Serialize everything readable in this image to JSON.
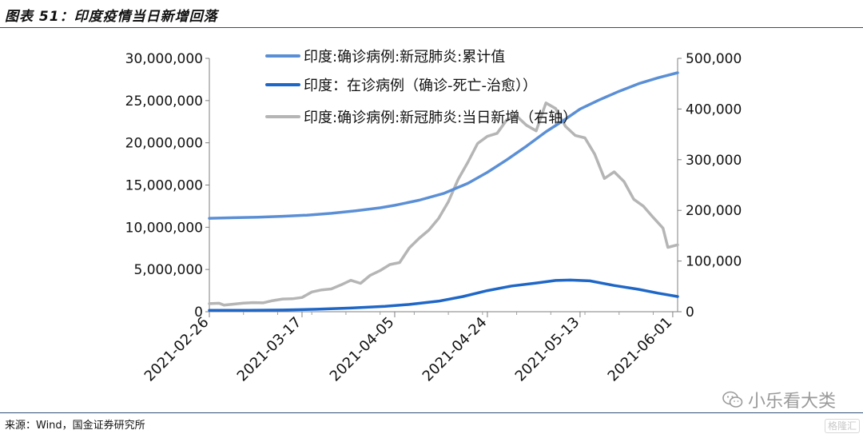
{
  "figure_title": "图表 51：印度疫情当日新增回落",
  "source_note": "来源：Wind，国金证券研究所",
  "watermark": "小乐看大类",
  "corner_badge": "格隆汇",
  "colors": {
    "cumulative": "#5b8fd5",
    "active": "#1f67c7",
    "daily": "#b5b5b5",
    "rule": "#2f4d7a"
  },
  "chart_data": {
    "type": "line",
    "title": "",
    "xlabel": "",
    "ylabel": "",
    "ylim": [
      0,
      30000000
    ],
    "y2lim": [
      0,
      500000
    ],
    "y_ticks": [
      0,
      5000000,
      10000000,
      15000000,
      20000000,
      25000000,
      30000000
    ],
    "y_tick_labels": [
      "0",
      "5,000,000",
      "10,000,000",
      "15,000,000",
      "20,000,000",
      "25,000,000",
      "30,000,000"
    ],
    "y2_ticks": [
      0,
      100000,
      200000,
      300000,
      400000,
      500000
    ],
    "y2_tick_labels": [
      "0",
      "100,000",
      "200,000",
      "300,000",
      "400,000",
      "500,000"
    ],
    "x_tick_labels": [
      "2021-02-26",
      "2021-03-17",
      "2021-04-05",
      "2021-04-24",
      "2021-05-13",
      "2021-06-01"
    ],
    "x_range": [
      "2021-02-26",
      "2021-06-02"
    ],
    "grid": false,
    "legend_position": "top-left",
    "series": [
      {
        "name": "印度:确诊病例:新冠肺炎:累计值",
        "axis": "left",
        "points": [
          [
            "2021-02-26",
            11060000
          ],
          [
            "2021-03-03",
            11130000
          ],
          [
            "2021-03-08",
            11200000
          ],
          [
            "2021-03-13",
            11300000
          ],
          [
            "2021-03-18",
            11430000
          ],
          [
            "2021-03-23",
            11650000
          ],
          [
            "2021-03-28",
            11950000
          ],
          [
            "2021-04-02",
            12300000
          ],
          [
            "2021-04-05",
            12600000
          ],
          [
            "2021-04-10",
            13200000
          ],
          [
            "2021-04-15",
            14000000
          ],
          [
            "2021-04-20",
            15200000
          ],
          [
            "2021-04-24",
            16500000
          ],
          [
            "2021-04-28",
            18000000
          ],
          [
            "2021-05-02",
            19600000
          ],
          [
            "2021-05-06",
            21300000
          ],
          [
            "2021-05-10",
            22800000
          ],
          [
            "2021-05-13",
            24000000
          ],
          [
            "2021-05-17",
            25100000
          ],
          [
            "2021-05-21",
            26100000
          ],
          [
            "2021-05-25",
            27000000
          ],
          [
            "2021-05-29",
            27700000
          ],
          [
            "2021-06-02",
            28300000
          ]
        ]
      },
      {
        "name": "印度：在诊病例（确诊-死亡-治愈））",
        "axis": "left",
        "points": [
          [
            "2021-02-26",
            160000
          ],
          [
            "2021-03-06",
            170000
          ],
          [
            "2021-03-13",
            200000
          ],
          [
            "2021-03-20",
            290000
          ],
          [
            "2021-03-27",
            440000
          ],
          [
            "2021-04-03",
            630000
          ],
          [
            "2021-04-08",
            860000
          ],
          [
            "2021-04-14",
            1250000
          ],
          [
            "2021-04-19",
            1800000
          ],
          [
            "2021-04-24",
            2500000
          ],
          [
            "2021-04-29",
            3050000
          ],
          [
            "2021-05-04",
            3400000
          ],
          [
            "2021-05-08",
            3700000
          ],
          [
            "2021-05-11",
            3750000
          ],
          [
            "2021-05-15",
            3650000
          ],
          [
            "2021-05-20",
            3100000
          ],
          [
            "2021-05-25",
            2650000
          ],
          [
            "2021-05-29",
            2200000
          ],
          [
            "2021-06-02",
            1800000
          ]
        ]
      },
      {
        "name": "印度:确诊病例:新冠肺炎:当日新增（右轴）",
        "axis": "right",
        "points": [
          [
            "2021-02-26",
            16000
          ],
          [
            "2021-02-28",
            16700
          ],
          [
            "2021-03-01",
            13000
          ],
          [
            "2021-03-03",
            15000
          ],
          [
            "2021-03-05",
            17000
          ],
          [
            "2021-03-07",
            18000
          ],
          [
            "2021-03-09",
            17500
          ],
          [
            "2021-03-11",
            22000
          ],
          [
            "2021-03-13",
            25000
          ],
          [
            "2021-03-15",
            25500
          ],
          [
            "2021-03-17",
            28000
          ],
          [
            "2021-03-19",
            39000
          ],
          [
            "2021-03-21",
            43000
          ],
          [
            "2021-03-23",
            45000
          ],
          [
            "2021-03-25",
            53000
          ],
          [
            "2021-03-27",
            62000
          ],
          [
            "2021-03-29",
            56000
          ],
          [
            "2021-03-31",
            72000
          ],
          [
            "2021-04-02",
            81000
          ],
          [
            "2021-04-04",
            93000
          ],
          [
            "2021-04-06",
            97000
          ],
          [
            "2021-04-08",
            126000
          ],
          [
            "2021-04-10",
            145000
          ],
          [
            "2021-04-12",
            161000
          ],
          [
            "2021-04-14",
            184000
          ],
          [
            "2021-04-16",
            217000
          ],
          [
            "2021-04-18",
            261000
          ],
          [
            "2021-04-20",
            295000
          ],
          [
            "2021-04-22",
            332000
          ],
          [
            "2021-04-24",
            346000
          ],
          [
            "2021-04-26",
            352000
          ],
          [
            "2021-04-28",
            379000
          ],
          [
            "2021-04-30",
            386000
          ],
          [
            "2021-05-02",
            368000
          ],
          [
            "2021-05-04",
            357000
          ],
          [
            "2021-05-06",
            412000
          ],
          [
            "2021-05-08",
            401000
          ],
          [
            "2021-05-10",
            366000
          ],
          [
            "2021-05-12",
            348000
          ],
          [
            "2021-05-14",
            343000
          ],
          [
            "2021-05-16",
            311000
          ],
          [
            "2021-05-18",
            263000
          ],
          [
            "2021-05-20",
            276000
          ],
          [
            "2021-05-22",
            257000
          ],
          [
            "2021-05-24",
            222000
          ],
          [
            "2021-05-26",
            208000
          ],
          [
            "2021-05-28",
            186000
          ],
          [
            "2021-05-30",
            165000
          ],
          [
            "2021-05-31",
            127000
          ],
          [
            "2021-06-02",
            132000
          ]
        ]
      }
    ]
  }
}
